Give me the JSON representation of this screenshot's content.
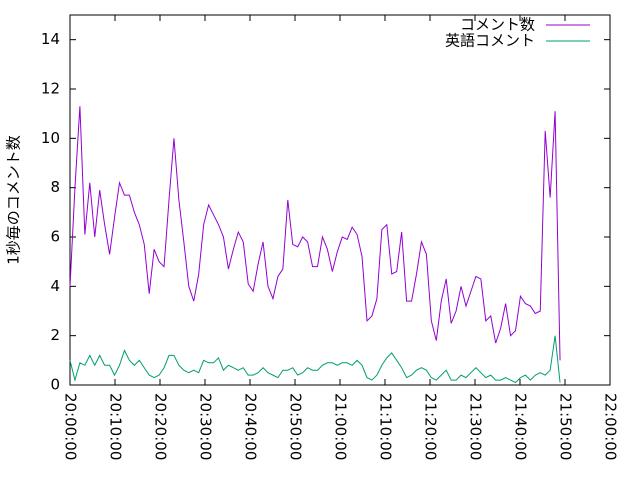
{
  "chart_data": {
    "type": "line",
    "ylabel": "1秒毎のコメント数",
    "x": [
      "20:00:00",
      "20:01:06",
      "20:02:12",
      "20:03:18",
      "20:04:24",
      "20:05:30",
      "20:06:36",
      "20:07:42",
      "20:08:48",
      "20:09:54",
      "20:11:00",
      "20:12:06",
      "20:13:12",
      "20:14:18",
      "20:15:24",
      "20:16:30",
      "20:17:36",
      "20:18:42",
      "20:19:48",
      "20:20:54",
      "20:22:00",
      "20:23:06",
      "20:24:12",
      "20:25:18",
      "20:26:24",
      "20:27:30",
      "20:28:36",
      "20:29:42",
      "20:30:48",
      "20:31:54",
      "20:33:00",
      "20:34:06",
      "20:35:12",
      "20:36:18",
      "20:37:24",
      "20:38:30",
      "20:39:36",
      "20:40:42",
      "20:41:48",
      "20:42:54",
      "20:44:00",
      "20:45:06",
      "20:46:12",
      "20:47:18",
      "20:48:24",
      "20:49:30",
      "20:50:36",
      "20:51:42",
      "20:52:48",
      "20:53:54",
      "20:55:00",
      "20:56:06",
      "20:57:12",
      "20:58:18",
      "20:59:24",
      "21:00:30",
      "21:01:36",
      "21:02:42",
      "21:03:48",
      "21:04:54",
      "21:06:00",
      "21:07:06",
      "21:08:12",
      "21:09:18",
      "21:10:24",
      "21:11:30",
      "21:12:36",
      "21:13:42",
      "21:14:48",
      "21:15:54",
      "21:17:00",
      "21:18:06",
      "21:19:12",
      "21:20:18",
      "21:21:24",
      "21:22:30",
      "21:23:36",
      "21:24:42",
      "21:25:48",
      "21:26:54",
      "21:28:00",
      "21:29:06",
      "21:30:12",
      "21:31:18",
      "21:32:24",
      "21:33:30",
      "21:34:36",
      "21:35:42",
      "21:36:48",
      "21:37:54",
      "21:39:00",
      "21:40:06",
      "21:41:12",
      "21:42:18",
      "21:43:24",
      "21:44:30",
      "21:45:36",
      "21:46:42",
      "21:47:48",
      "21:48:54"
    ],
    "series": [
      {
        "name": "コメント数",
        "color": "#9400d3",
        "values": [
          4.0,
          8,
          11.3,
          6.1,
          8.2,
          6,
          7.9,
          6.5,
          5.3,
          6.8,
          8.2,
          7.7,
          7.7,
          7,
          6.5,
          5.7,
          3.7,
          5.5,
          5,
          4.8,
          7.5,
          10,
          7.5,
          5.8,
          4,
          3.4,
          4.5,
          6.5,
          7.3,
          6.9,
          6.5,
          6,
          4.7,
          5.5,
          6.2,
          5.8,
          4.1,
          3.8,
          4.9,
          5.8,
          4,
          3.5,
          4.4,
          4.7,
          7.5,
          5.7,
          5.6,
          6,
          5.8,
          4.8,
          4.8,
          6,
          5.5,
          4.6,
          5.4,
          6,
          5.9,
          6.4,
          6.1,
          5.2,
          2.6,
          2.8,
          3.5,
          6.3,
          6.5,
          4.5,
          4.6,
          6.2,
          3.4,
          3.4,
          4.5,
          5.8,
          5.3,
          2.6,
          1.8,
          3.4,
          4.3,
          2.5,
          3,
          4,
          3.2,
          3.8,
          4.4,
          4.3,
          2.6,
          2.8,
          1.7,
          2.3,
          3.3,
          2.0,
          2.2,
          3.6,
          3.3,
          3.2,
          2.9,
          3,
          10.3,
          7.6,
          11.1,
          1.0
        ]
      },
      {
        "name": "英語コメント",
        "color": "#009e73",
        "values": [
          1.0,
          0.2,
          0.9,
          0.8,
          1.2,
          0.8,
          1.2,
          0.8,
          0.8,
          0.4,
          0.8,
          1.4,
          1.0,
          0.8,
          1.0,
          0.7,
          0.4,
          0.3,
          0.4,
          0.7,
          1.2,
          1.2,
          0.8,
          0.6,
          0.5,
          0.6,
          0.5,
          1.0,
          0.9,
          0.9,
          1.1,
          0.6,
          0.8,
          0.7,
          0.6,
          0.7,
          0.4,
          0.4,
          0.5,
          0.7,
          0.5,
          0.4,
          0.3,
          0.6,
          0.6,
          0.7,
          0.4,
          0.5,
          0.7,
          0.6,
          0.6,
          0.8,
          0.9,
          0.9,
          0.8,
          0.9,
          0.9,
          0.8,
          1.0,
          0.8,
          0.3,
          0.2,
          0.4,
          0.8,
          1.1,
          1.3,
          1.0,
          0.7,
          0.3,
          0.4,
          0.6,
          0.7,
          0.6,
          0.3,
          0.2,
          0.4,
          0.6,
          0.2,
          0.2,
          0.4,
          0.3,
          0.5,
          0.7,
          0.5,
          0.3,
          0.4,
          0.2,
          0.2,
          0.3,
          0.2,
          0.1,
          0.3,
          0.4,
          0.2,
          0.4,
          0.5,
          0.4,
          0.6,
          2.0,
          0.1
        ]
      }
    ],
    "xlim": [
      "20:00:00",
      "22:00:00"
    ],
    "xticks": [
      "20:00:00",
      "20:10:00",
      "20:20:00",
      "20:30:00",
      "20:40:00",
      "20:50:00",
      "21:00:00",
      "21:10:00",
      "21:20:00",
      "21:30:00",
      "21:40:00",
      "21:50:00",
      "22:00:00"
    ],
    "ylim": [
      0,
      15
    ],
    "yticks": [
      0,
      2,
      4,
      6,
      8,
      10,
      12,
      14
    ],
    "grid": false,
    "legend": "top-right"
  }
}
